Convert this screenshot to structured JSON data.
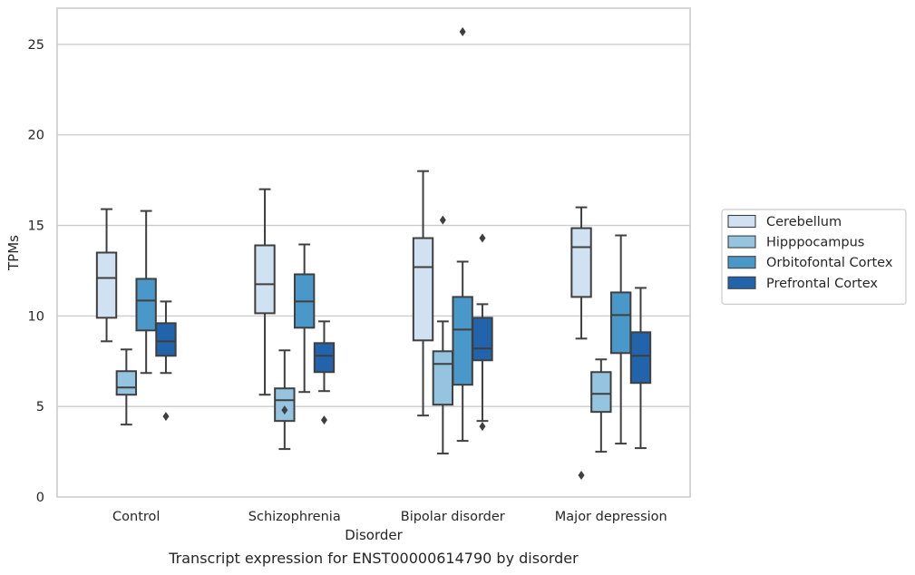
{
  "chart_data": {
    "type": "boxplot",
    "xlabel": "Disorder",
    "ylabel": "TPMs",
    "caption": "Transcript expression for ENST00000614790 by disorder",
    "ylim": [
      0,
      27
    ],
    "yticks": [
      0,
      5,
      10,
      15,
      20,
      25
    ],
    "grid": "horizontal",
    "legend_position": "right",
    "categories": [
      "Control",
      "Schizophrenia",
      "Bipolar disorder",
      "Major depression"
    ],
    "series": [
      {
        "name": "Cerebellum",
        "color": "#d0e1f2",
        "boxes": [
          {
            "whislo": 8.6,
            "q1": 9.9,
            "med": 12.1,
            "q3": 13.5,
            "whishi": 15.9,
            "fliers": []
          },
          {
            "whislo": 5.65,
            "q1": 10.15,
            "med": 11.75,
            "q3": 13.9,
            "whishi": 17.0,
            "fliers": []
          },
          {
            "whislo": 4.5,
            "q1": 8.65,
            "med": 12.7,
            "q3": 14.3,
            "whishi": 18.0,
            "fliers": []
          },
          {
            "whislo": 8.75,
            "q1": 11.05,
            "med": 13.8,
            "q3": 14.85,
            "whishi": 16.0,
            "fliers": [
              1.2
            ]
          }
        ]
      },
      {
        "name": "Hipppocampus",
        "color": "#94c4df",
        "boxes": [
          {
            "whislo": 4.0,
            "q1": 5.65,
            "med": 6.05,
            "q3": 6.95,
            "whishi": 8.15,
            "fliers": []
          },
          {
            "whislo": 2.65,
            "q1": 4.2,
            "med": 5.35,
            "q3": 6.0,
            "whishi": 8.1,
            "fliers": [
              4.8
            ]
          },
          {
            "whislo": 2.4,
            "q1": 5.1,
            "med": 7.35,
            "q3": 8.05,
            "whishi": 9.7,
            "fliers": [
              15.3
            ]
          },
          {
            "whislo": 2.5,
            "q1": 4.7,
            "med": 5.7,
            "q3": 6.9,
            "whishi": 7.6,
            "fliers": []
          }
        ]
      },
      {
        "name": "Orbitofontal Cortex",
        "color": "#4a98c9",
        "boxes": [
          {
            "whislo": 6.85,
            "q1": 9.2,
            "med": 10.85,
            "q3": 12.05,
            "whishi": 15.8,
            "fliers": []
          },
          {
            "whislo": 5.8,
            "q1": 9.35,
            "med": 10.8,
            "q3": 12.3,
            "whishi": 13.95,
            "fliers": []
          },
          {
            "whislo": 3.1,
            "q1": 6.2,
            "med": 9.25,
            "q3": 11.05,
            "whishi": 13.0,
            "fliers": [
              25.7
            ]
          },
          {
            "whislo": 2.95,
            "q1": 7.95,
            "med": 10.05,
            "q3": 11.3,
            "whishi": 14.45,
            "fliers": []
          }
        ]
      },
      {
        "name": "Prefrontal Cortex",
        "color": "#2164ab",
        "boxes": [
          {
            "whislo": 6.85,
            "q1": 7.8,
            "med": 8.6,
            "q3": 9.6,
            "whishi": 10.8,
            "fliers": [
              4.45
            ]
          },
          {
            "whislo": 5.85,
            "q1": 6.9,
            "med": 7.8,
            "q3": 8.5,
            "whishi": 9.7,
            "fliers": [
              4.25
            ]
          },
          {
            "whislo": 4.2,
            "q1": 7.55,
            "med": 8.2,
            "q3": 9.9,
            "whishi": 10.65,
            "fliers": [
              3.9,
              14.3
            ]
          },
          {
            "whislo": 2.7,
            "q1": 6.3,
            "med": 7.8,
            "q3": 9.1,
            "whishi": 11.55,
            "fliers": []
          }
        ]
      }
    ]
  }
}
